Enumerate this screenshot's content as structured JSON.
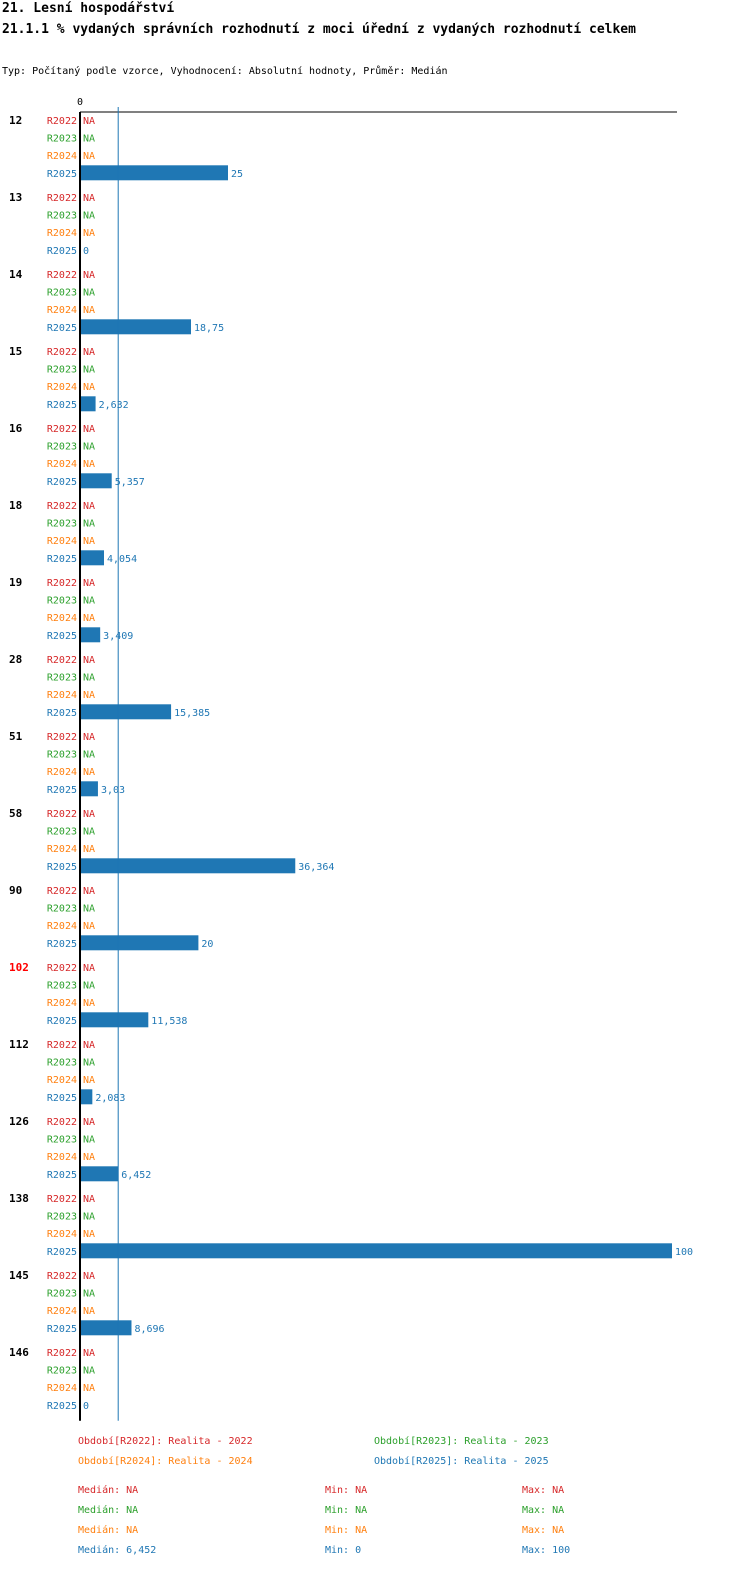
{
  "header": {
    "title": "21. Lesní hospodářství",
    "subtitle": "21.1.1 % vydaných správních rozhodnutí z moci úřední z vydaných rozhodnutí celkem",
    "info": "Typ: Počítaný podle vzorce, Vyhodnocení: Absolutní hodnoty, Průměr: Medián"
  },
  "colors": {
    "R2022": "#d62728",
    "R2023": "#2ca02c",
    "R2024": "#ff7f0e",
    "R2025": "#1f77b4",
    "highlight": "#ff0000",
    "axis": "#000000"
  },
  "chart_data": {
    "type": "bar",
    "orientation": "horizontal",
    "title": "21.1.1 % vydaných správních rozhodnutí z moci úřední z vydaných rozhodnutí celkem",
    "axis_zero_label": "0",
    "xlim": [
      0,
      100
    ],
    "median_line": 6.452,
    "series_names": [
      "R2022",
      "R2023",
      "R2024",
      "R2025"
    ],
    "categories": [
      {
        "label": "12",
        "highlight": false,
        "values": [
          "NA",
          "NA",
          "NA",
          "25"
        ]
      },
      {
        "label": "13",
        "highlight": false,
        "values": [
          "NA",
          "NA",
          "NA",
          "0"
        ]
      },
      {
        "label": "14",
        "highlight": false,
        "values": [
          "NA",
          "NA",
          "NA",
          "18,75"
        ]
      },
      {
        "label": "15",
        "highlight": false,
        "values": [
          "NA",
          "NA",
          "NA",
          "2,632"
        ]
      },
      {
        "label": "16",
        "highlight": false,
        "values": [
          "NA",
          "NA",
          "NA",
          "5,357"
        ]
      },
      {
        "label": "18",
        "highlight": false,
        "values": [
          "NA",
          "NA",
          "NA",
          "4,054"
        ]
      },
      {
        "label": "19",
        "highlight": false,
        "values": [
          "NA",
          "NA",
          "NA",
          "3,409"
        ]
      },
      {
        "label": "28",
        "highlight": false,
        "values": [
          "NA",
          "NA",
          "NA",
          "15,385"
        ]
      },
      {
        "label": "51",
        "highlight": false,
        "values": [
          "NA",
          "NA",
          "NA",
          "3,03"
        ]
      },
      {
        "label": "58",
        "highlight": false,
        "values": [
          "NA",
          "NA",
          "NA",
          "36,364"
        ]
      },
      {
        "label": "90",
        "highlight": false,
        "values": [
          "NA",
          "NA",
          "NA",
          "20"
        ]
      },
      {
        "label": "102",
        "highlight": true,
        "values": [
          "NA",
          "NA",
          "NA",
          "11,538"
        ]
      },
      {
        "label": "112",
        "highlight": false,
        "values": [
          "NA",
          "NA",
          "NA",
          "2,083"
        ]
      },
      {
        "label": "126",
        "highlight": false,
        "values": [
          "NA",
          "NA",
          "NA",
          "6,452"
        ]
      },
      {
        "label": "138",
        "highlight": false,
        "values": [
          "NA",
          "NA",
          "NA",
          "100"
        ]
      },
      {
        "label": "145",
        "highlight": false,
        "values": [
          "NA",
          "NA",
          "NA",
          "8,696"
        ]
      },
      {
        "label": "146",
        "highlight": false,
        "values": [
          "NA",
          "NA",
          "NA",
          "0"
        ]
      }
    ]
  },
  "legend": {
    "periods": {
      "R2022": "Období[R2022]: Realita - 2022",
      "R2023": "Období[R2023]: Realita - 2023",
      "R2024": "Období[R2024]: Realita - 2024",
      "R2025": "Období[R2025]: Realita - 2025"
    },
    "stats": {
      "R2022": {
        "median": "Medián: NA",
        "min": "Min: NA",
        "max": "Max: NA"
      },
      "R2023": {
        "median": "Medián: NA",
        "min": "Min: NA",
        "max": "Max: NA"
      },
      "R2024": {
        "median": "Medián: NA",
        "min": "Min: NA",
        "max": "Max: NA"
      },
      "R2025": {
        "median": "Medián: 6,452",
        "min": "Min: 0",
        "max": "Max: 100"
      }
    }
  }
}
